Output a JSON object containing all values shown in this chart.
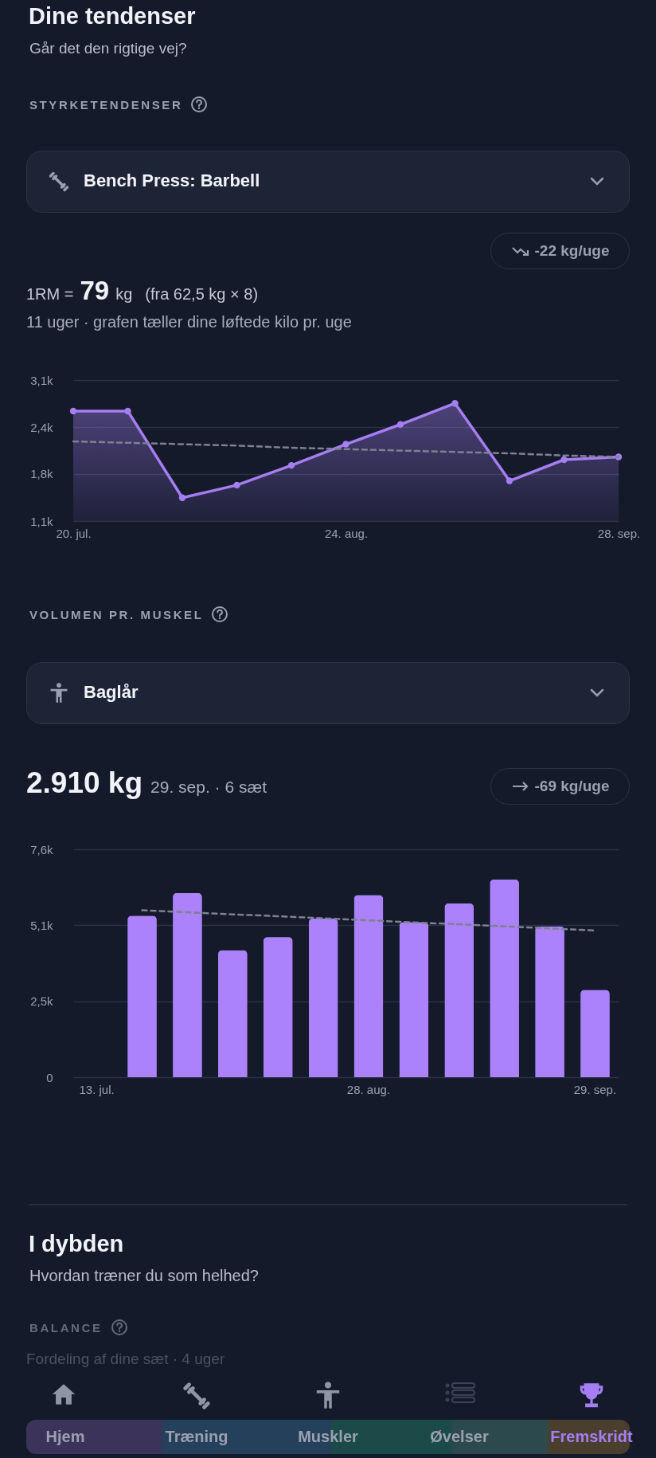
{
  "chart_data": [
    {
      "type": "area",
      "title": "STYRKETENDENSER",
      "subtitle": "Bench Press: Barbell",
      "annotations": [
        "Dine tendenser",
        "Går det den rigtige vej?",
        "-22 kg/uge",
        "1RM =",
        "79",
        "kg",
        "(fra 62,5 kg × 8)",
        "11 uger · grafen tæller dine løftede kilo pr. uge"
      ],
      "categories": [
        "20. jul.",
        null,
        null,
        null,
        null,
        "24. aug.",
        null,
        null,
        null,
        null,
        "28. sep."
      ],
      "series": [
        {
          "type": "area",
          "color": "#a47ef2",
          "values": [
            2660,
            2660,
            1430,
            1610,
            1890,
            2190,
            2470,
            2770,
            1670,
            1970,
            2010
          ]
        },
        {
          "type": "line",
          "color": "#7d8190",
          "line_style": "dashed",
          "marker": "none",
          "values": [
            2230,
            2210,
            2190,
            2170,
            2140,
            2120,
            2100,
            2080,
            2060,
            2030,
            2010
          ]
        }
      ],
      "ylim": [
        1100,
        3100
      ],
      "yticks": [
        {
          "value": 1100,
          "label": "1,1k"
        },
        {
          "value": 1767,
          "label": "1,8k"
        },
        {
          "value": 2433,
          "label": "2,4k"
        },
        {
          "value": 3100,
          "label": "3,1k"
        }
      ],
      "grid": "y",
      "marker": "circle",
      "line_style": "solid"
    },
    {
      "type": "bar",
      "title": "VOLUMEN PR. MUSKEL",
      "subtitle": "Baglår",
      "annotations": [
        "2.910 kg",
        "29. sep. · 6 sæt",
        "-69 kg/uge"
      ],
      "categories": [
        "13. jul.",
        null,
        null,
        null,
        null,
        null,
        "28. aug.",
        null,
        null,
        null,
        null,
        "29. sep."
      ],
      "series": [
        {
          "type": "bar",
          "values": [
            0,
            5380,
            6140,
            4230,
            4670,
            5290,
            6070,
            5170,
            5790,
            6590,
            5030,
            2910
          ],
          "colors": [
            "#5d6372",
            "#ab82fb",
            "#ab82fb",
            "#ab82fb",
            "#ab82fb",
            "#ab82fb",
            "#ab82fb",
            "#ab82fb",
            "#ab82fb",
            "#ab82fb",
            "#ab82fb",
            "#ab82fb"
          ]
        },
        {
          "type": "line",
          "color": "#7d8190",
          "line_style": "dashed",
          "values": [
            null,
            5570,
            5500,
            5430,
            5370,
            5300,
            5230,
            5160,
            5100,
            5030,
            4960,
            4890
          ]
        }
      ],
      "ylim": [
        0,
        7600
      ],
      "yticks": [
        0,
        {
          "value": 2533,
          "label": "2,5k"
        },
        {
          "value": 5067,
          "label": "5,1k"
        },
        {
          "value": 7600,
          "label": "7,6k"
        }
      ],
      "grid": "y"
    },
    {
      "type": "other",
      "title": "I dybden",
      "subtitle": "Hvordan træner du som helhed?",
      "annotations": [
        "BALANCE",
        "Fordeling af dine sæt · 4 uger",
        "Hjem",
        "Træning",
        "Muskler",
        "Øvelser",
        "Fremskridt"
      ]
    }
  ]
}
